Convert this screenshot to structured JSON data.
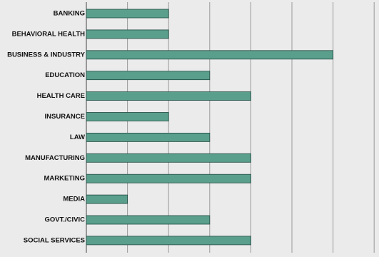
{
  "chart_data": {
    "type": "bar",
    "orientation": "horizontal",
    "categories": [
      "BANKING",
      "BEHAVIORAL HEALTH",
      "BUSINESS & INDUSTRY",
      "EDUCATION",
      "HEALTH CARE",
      "INSURANCE",
      "LAW",
      "MANUFACTURING",
      "MARKETING",
      "MEDIA",
      "GOVT./CIVIC",
      "SOCIAL SERVICES"
    ],
    "values": [
      2,
      2,
      6,
      3,
      4,
      2,
      3,
      4,
      4,
      1,
      3,
      4
    ],
    "xlim": [
      0,
      7
    ],
    "grid": true,
    "title": "",
    "xlabel": "",
    "ylabel": "",
    "bar_color": "#5a9e8c",
    "bar_edge_color": "#1f4a40",
    "gridline_color": "#9a9a9a",
    "background_color": "#ebebeb"
  }
}
